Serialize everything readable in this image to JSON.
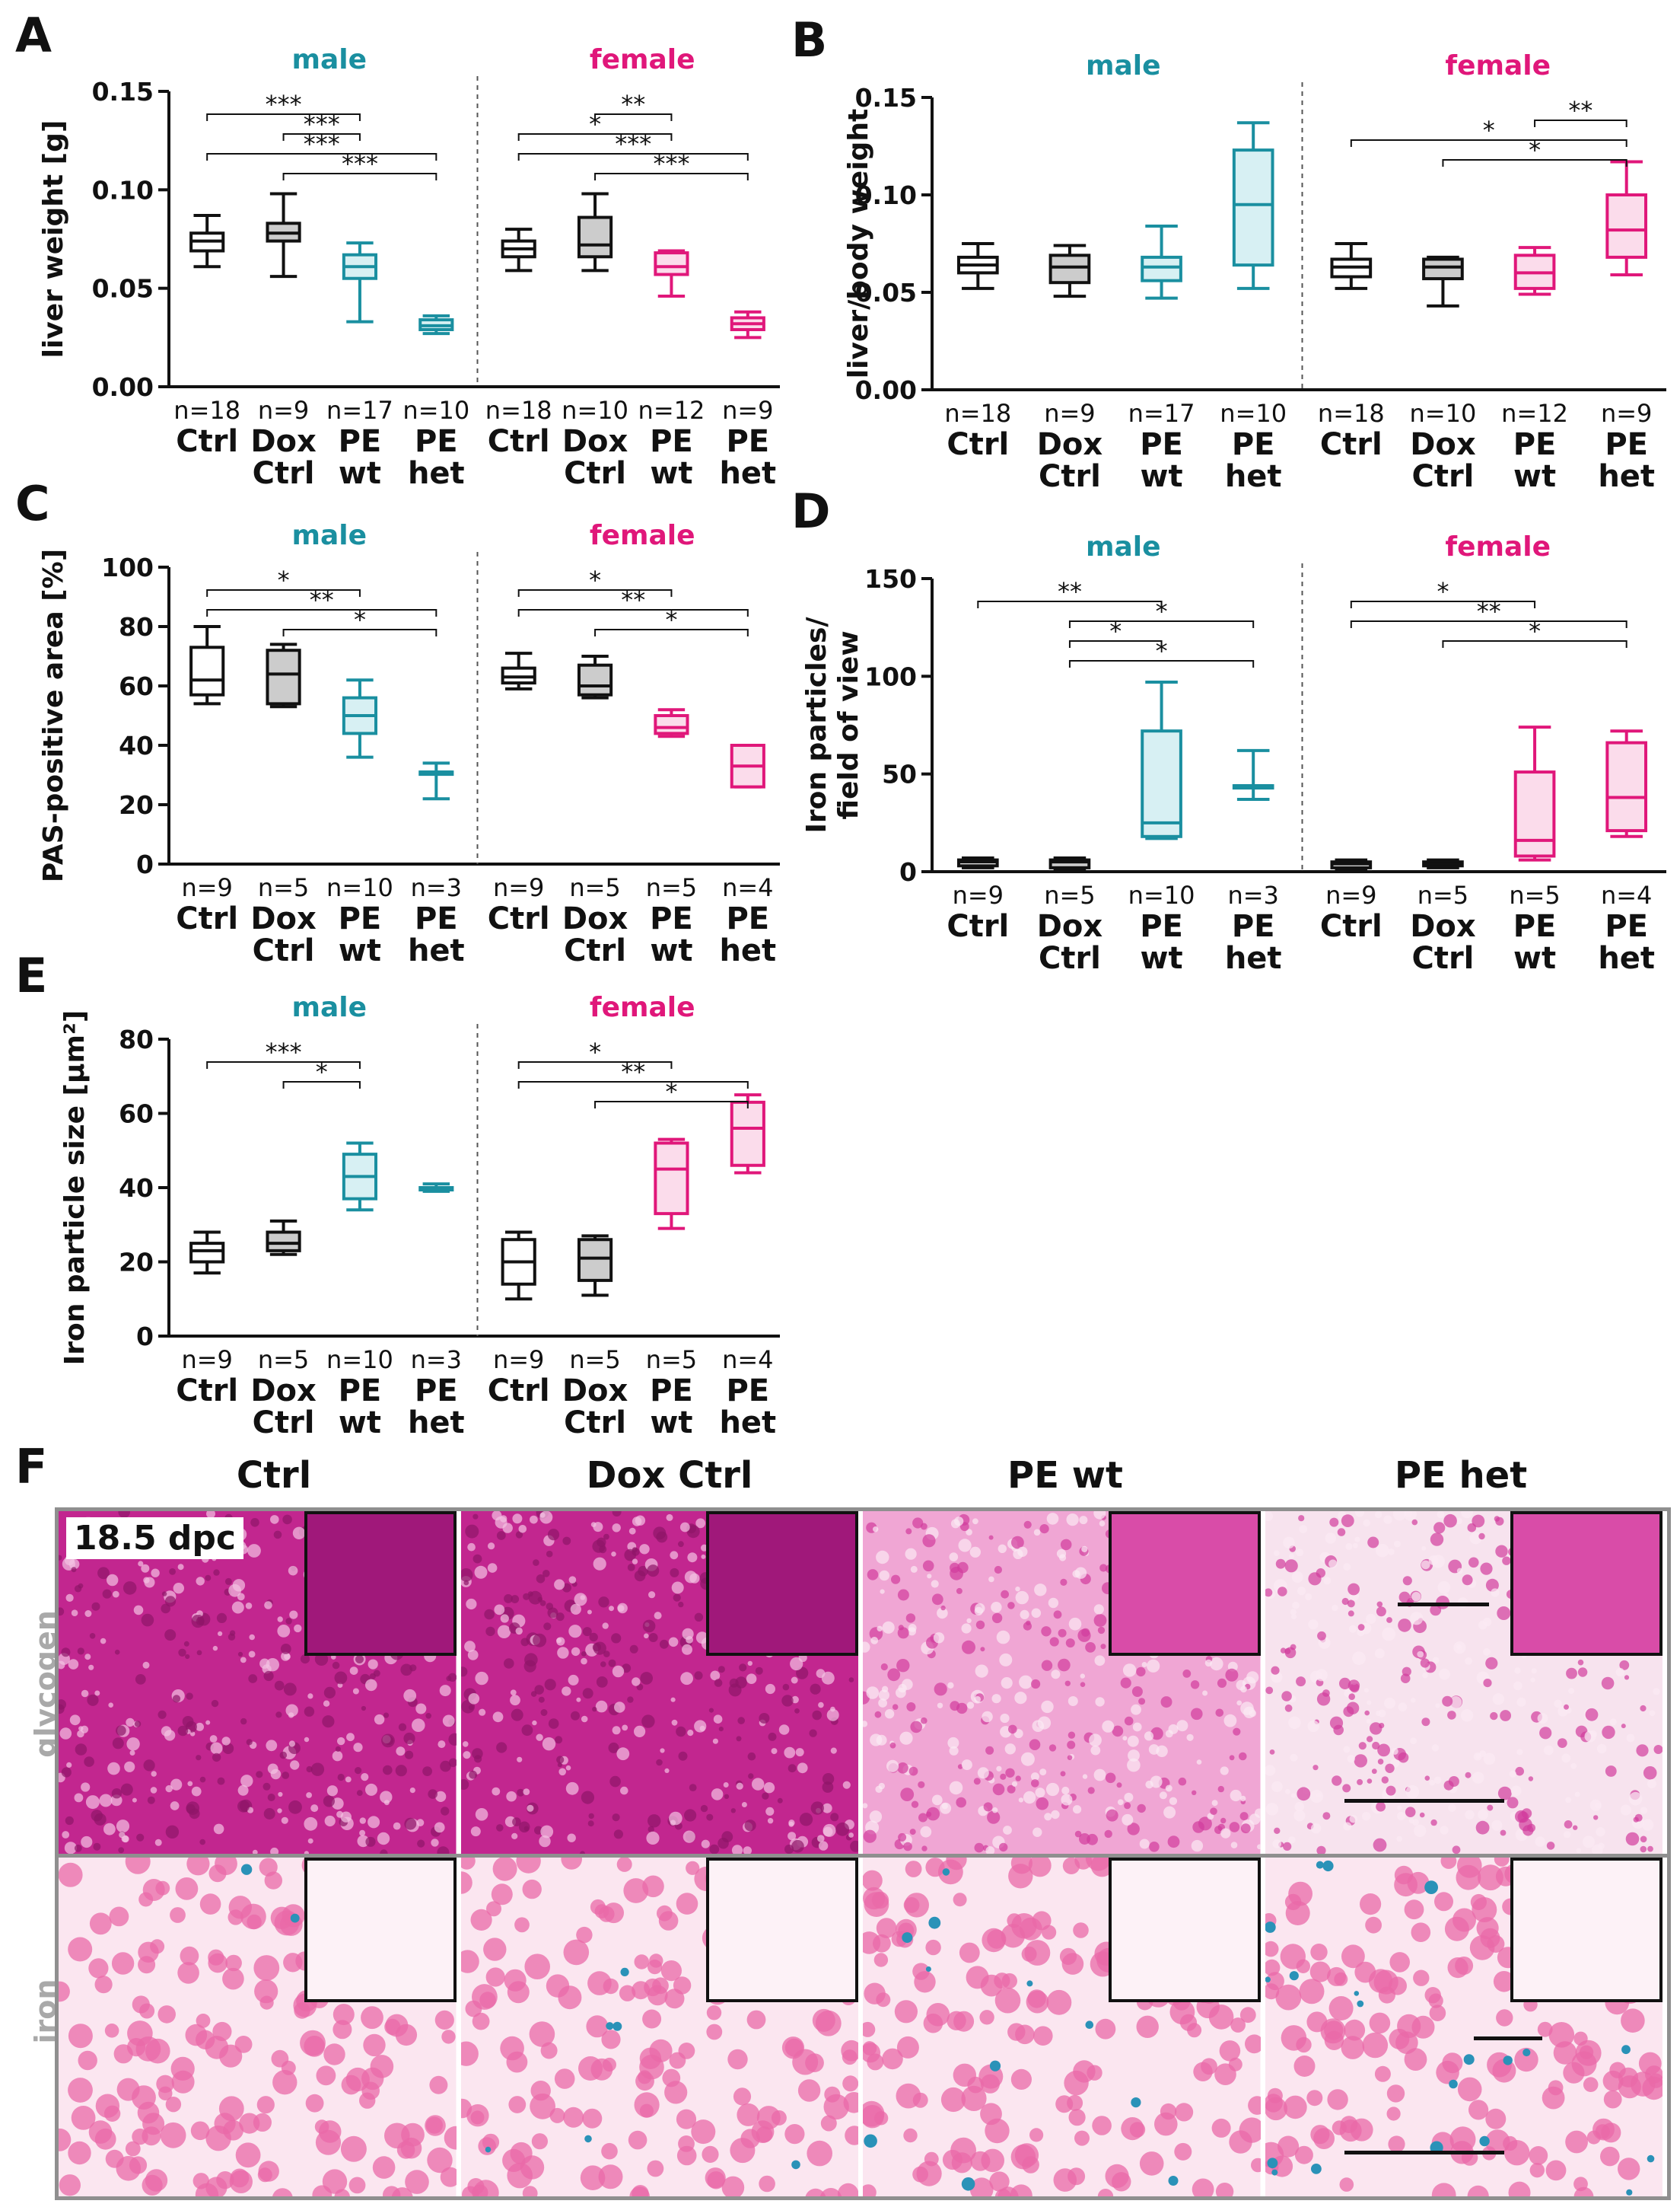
{
  "colors": {
    "male": "#1a8fa0",
    "female": "#e0177a",
    "ctrl": "#111111",
    "grey_fill": "#cccccc",
    "male_fill": "#d7f0f3",
    "female_fill": "#fbdceb"
  },
  "group_labels": {
    "male": "male",
    "female": "female"
  },
  "categories": [
    [
      "Ctrl"
    ],
    [
      "Dox",
      "Ctrl"
    ],
    [
      "PE",
      "wt"
    ],
    [
      "PE",
      "het"
    ]
  ],
  "chart_data": [
    {
      "panel": "A",
      "type": "box",
      "ylabel": "liver weight [g]",
      "ylim": [
        0,
        0.15
      ],
      "yticks": [
        "0.00",
        "0.05",
        "0.10",
        "0.15"
      ],
      "groups": [
        {
          "name": "male",
          "boxes": [
            {
              "cat": 0,
              "n": "n=18",
              "min": 0.061,
              "q1": 0.069,
              "median": 0.074,
              "q3": 0.078,
              "max": 0.087
            },
            {
              "cat": 1,
              "n": "n=9",
              "min": 0.056,
              "q1": 0.074,
              "median": 0.078,
              "q3": 0.083,
              "max": 0.098
            },
            {
              "cat": 2,
              "n": "n=17",
              "min": 0.033,
              "q1": 0.055,
              "median": 0.061,
              "q3": 0.067,
              "max": 0.073
            },
            {
              "cat": 3,
              "n": "n=10",
              "min": 0.027,
              "q1": 0.029,
              "median": 0.031,
              "q3": 0.034,
              "max": 0.036
            }
          ],
          "sig": [
            {
              "from": 0,
              "to": 2,
              "label": "***"
            },
            {
              "from": 1,
              "to": 2,
              "label": "***"
            },
            {
              "from": 0,
              "to": 3,
              "label": "***"
            },
            {
              "from": 1,
              "to": 3,
              "label": "***"
            }
          ]
        },
        {
          "name": "female",
          "boxes": [
            {
              "cat": 0,
              "n": "n=18",
              "min": 0.059,
              "q1": 0.066,
              "median": 0.07,
              "q3": 0.074,
              "max": 0.08
            },
            {
              "cat": 1,
              "n": "n=10",
              "min": 0.059,
              "q1": 0.066,
              "median": 0.072,
              "q3": 0.086,
              "max": 0.098
            },
            {
              "cat": 2,
              "n": "n=12",
              "min": 0.046,
              "q1": 0.057,
              "median": 0.061,
              "q3": 0.068,
              "max": 0.069
            },
            {
              "cat": 3,
              "n": "n=9",
              "min": 0.025,
              "q1": 0.029,
              "median": 0.032,
              "q3": 0.035,
              "max": 0.038
            }
          ],
          "sig": [
            {
              "from": 1,
              "to": 2,
              "label": "**"
            },
            {
              "from": 0,
              "to": 2,
              "label": "*"
            },
            {
              "from": 0,
              "to": 3,
              "label": "***"
            },
            {
              "from": 1,
              "to": 3,
              "label": "***"
            }
          ]
        }
      ]
    },
    {
      "panel": "B",
      "type": "box",
      "ylabel": "liver/body weight",
      "ylim": [
        0,
        0.15
      ],
      "yticks": [
        "0.00",
        "0.05",
        "0.10",
        "0.15"
      ],
      "groups": [
        {
          "name": "male",
          "boxes": [
            {
              "cat": 0,
              "n": "n=18",
              "min": 0.052,
              "q1": 0.06,
              "median": 0.064,
              "q3": 0.068,
              "max": 0.075
            },
            {
              "cat": 1,
              "n": "n=9",
              "min": 0.048,
              "q1": 0.055,
              "median": 0.063,
              "q3": 0.069,
              "max": 0.074
            },
            {
              "cat": 2,
              "n": "n=17",
              "min": 0.047,
              "q1": 0.056,
              "median": 0.063,
              "q3": 0.068,
              "max": 0.084
            },
            {
              "cat": 3,
              "n": "n=10",
              "min": 0.052,
              "q1": 0.064,
              "median": 0.095,
              "q3": 0.123,
              "max": 0.137
            }
          ],
          "sig": []
        },
        {
          "name": "female",
          "boxes": [
            {
              "cat": 0,
              "n": "n=18",
              "min": 0.052,
              "q1": 0.058,
              "median": 0.063,
              "q3": 0.067,
              "max": 0.075
            },
            {
              "cat": 1,
              "n": "n=10",
              "min": 0.043,
              "q1": 0.057,
              "median": 0.063,
              "q3": 0.067,
              "max": 0.068
            },
            {
              "cat": 2,
              "n": "n=12",
              "min": 0.049,
              "q1": 0.052,
              "median": 0.06,
              "q3": 0.069,
              "max": 0.073
            },
            {
              "cat": 3,
              "n": "n=9",
              "min": 0.059,
              "q1": 0.068,
              "median": 0.082,
              "q3": 0.1,
              "max": 0.117
            }
          ],
          "sig": [
            {
              "from": 2,
              "to": 3,
              "label": "**"
            },
            {
              "from": 0,
              "to": 3,
              "label": "*"
            },
            {
              "from": 1,
              "to": 3,
              "label": "*"
            }
          ]
        }
      ]
    },
    {
      "panel": "C",
      "type": "box",
      "ylabel": "PAS-positive area [%]",
      "ylim": [
        0,
        100
      ],
      "yticks": [
        "0",
        "20",
        "40",
        "60",
        "80",
        "100"
      ],
      "groups": [
        {
          "name": "male",
          "boxes": [
            {
              "cat": 0,
              "n": "n=9",
              "min": 54,
              "q1": 57,
              "median": 62,
              "q3": 73,
              "max": 80
            },
            {
              "cat": 1,
              "n": "n=5",
              "min": 53,
              "q1": 54,
              "median": 64,
              "q3": 72,
              "max": 74
            },
            {
              "cat": 2,
              "n": "n=10",
              "min": 36,
              "q1": 44,
              "median": 50,
              "q3": 56,
              "max": 62
            },
            {
              "cat": 3,
              "n": "n=3",
              "min": 22,
              "q1": 31,
              "median": 31,
              "q3": 31,
              "max": 34
            }
          ],
          "sig": [
            {
              "from": 0,
              "to": 2,
              "label": "*"
            },
            {
              "from": 0,
              "to": 3,
              "label": "**"
            },
            {
              "from": 1,
              "to": 3,
              "label": "*"
            }
          ]
        },
        {
          "name": "female",
          "boxes": [
            {
              "cat": 0,
              "n": "n=9",
              "min": 59,
              "q1": 61,
              "median": 63,
              "q3": 66,
              "max": 71
            },
            {
              "cat": 1,
              "n": "n=5",
              "min": 56,
              "q1": 57,
              "median": 60,
              "q3": 67,
              "max": 70
            },
            {
              "cat": 2,
              "n": "n=5",
              "min": 43,
              "q1": 44,
              "median": 46,
              "q3": 50,
              "max": 52
            },
            {
              "cat": 3,
              "n": "n=4",
              "min": 26,
              "q1": 26,
              "median": 33,
              "q3": 40,
              "max": 40
            }
          ],
          "sig": [
            {
              "from": 0,
              "to": 2,
              "label": "*"
            },
            {
              "from": 0,
              "to": 3,
              "label": "**"
            },
            {
              "from": 1,
              "to": 3,
              "label": "*"
            }
          ]
        }
      ]
    },
    {
      "panel": "D",
      "type": "box",
      "ylabel": "Iron particles/ field of view",
      "ylim": [
        0,
        150
      ],
      "yticks": [
        "0",
        "50",
        "100",
        "150"
      ],
      "groups": [
        {
          "name": "male",
          "boxes": [
            {
              "cat": 0,
              "n": "n=9",
              "min": 2,
              "q1": 3,
              "median": 5,
              "q3": 6,
              "max": 7
            },
            {
              "cat": 1,
              "n": "n=5",
              "min": 1,
              "q1": 2,
              "median": 5,
              "q3": 6,
              "max": 7
            },
            {
              "cat": 2,
              "n": "n=10",
              "min": 17,
              "q1": 18,
              "median": 25,
              "q3": 72,
              "max": 97
            },
            {
              "cat": 3,
              "n": "n=3",
              "min": 37,
              "q1": 44,
              "median": 44,
              "q3": 44,
              "max": 62
            }
          ],
          "sig": [
            {
              "from": 0,
              "to": 2,
              "label": "**"
            },
            {
              "from": 1,
              "to": 3,
              "label": "*"
            },
            {
              "from": 1,
              "to": 2,
              "label": "*"
            },
            {
              "from": 1,
              "to": 3,
              "label": "*"
            }
          ]
        },
        {
          "name": "female",
          "boxes": [
            {
              "cat": 0,
              "n": "n=9",
              "min": 1,
              "q1": 2,
              "median": 4,
              "q3": 5,
              "max": 6
            },
            {
              "cat": 1,
              "n": "n=5",
              "min": 2,
              "q1": 3,
              "median": 4,
              "q3": 5,
              "max": 6
            },
            {
              "cat": 2,
              "n": "n=5",
              "min": 6,
              "q1": 8,
              "median": 16,
              "q3": 51,
              "max": 74
            },
            {
              "cat": 3,
              "n": "n=4",
              "min": 18,
              "q1": 21,
              "median": 38,
              "q3": 66,
              "max": 72
            }
          ],
          "sig": [
            {
              "from": 0,
              "to": 2,
              "label": "*"
            },
            {
              "from": 0,
              "to": 3,
              "label": "**"
            },
            {
              "from": 1,
              "to": 3,
              "label": "*"
            }
          ]
        }
      ]
    },
    {
      "panel": "E",
      "type": "box",
      "ylabel": "Iron particle size [µm²]",
      "ylim": [
        0,
        80
      ],
      "yticks": [
        "0",
        "20",
        "40",
        "60",
        "80"
      ],
      "groups": [
        {
          "name": "male",
          "boxes": [
            {
              "cat": 0,
              "n": "n=9",
              "min": 17,
              "q1": 20,
              "median": 23,
              "q3": 25,
              "max": 28
            },
            {
              "cat": 1,
              "n": "n=5",
              "min": 22,
              "q1": 23,
              "median": 25,
              "q3": 28,
              "max": 31
            },
            {
              "cat": 2,
              "n": "n=10",
              "min": 34,
              "q1": 37,
              "median": 43,
              "q3": 49,
              "max": 52
            },
            {
              "cat": 3,
              "n": "n=3",
              "min": 39,
              "q1": 40,
              "median": 40,
              "q3": 40,
              "max": 41
            }
          ],
          "sig": [
            {
              "from": 0,
              "to": 2,
              "label": "***"
            },
            {
              "from": 1,
              "to": 2,
              "label": "*"
            }
          ]
        },
        {
          "name": "female",
          "boxes": [
            {
              "cat": 0,
              "n": "n=9",
              "min": 10,
              "q1": 14,
              "median": 20,
              "q3": 26,
              "max": 28
            },
            {
              "cat": 1,
              "n": "n=5",
              "min": 11,
              "q1": 15,
              "median": 21,
              "q3": 26,
              "max": 27
            },
            {
              "cat": 2,
              "n": "n=5",
              "min": 29,
              "q1": 33,
              "median": 45,
              "q3": 52,
              "max": 53
            },
            {
              "cat": 3,
              "n": "n=4",
              "min": 44,
              "q1": 46,
              "median": 56,
              "q3": 63,
              "max": 65
            }
          ],
          "sig": [
            {
              "from": 0,
              "to": 2,
              "label": "*"
            },
            {
              "from": 0,
              "to": 3,
              "label": "**"
            },
            {
              "from": 1,
              "to": 3,
              "label": "*"
            }
          ]
        }
      ]
    }
  ],
  "panel_f": {
    "label": "F",
    "column_titles": [
      "Ctrl",
      "Dox Ctrl",
      "PE wt",
      "PE het"
    ],
    "row_labels": [
      "glycogen",
      "iron"
    ],
    "stage": "18.5 dpc",
    "colors": {
      "glycogen_dark": "#c2268f",
      "glycogen_light": "#f0a6d4",
      "iron_bg": "#fbe6f0",
      "nucleus": "#ea6aa8",
      "iron": "#2a92b8"
    }
  }
}
